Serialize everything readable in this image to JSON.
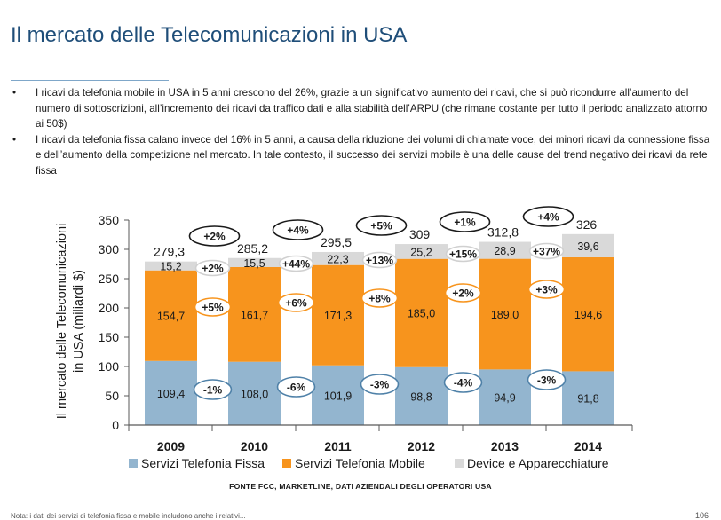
{
  "page": {
    "title": "Il mercato delle Telecomunicazioni in USA",
    "bullets": [
      "I ricavi da telefonia mobile in USA in 5 anni crescono del 26%, grazie a un significativo aumento dei ricavi, che si può ricondurre all’aumento del numero di sottoscrizioni, all’incremento dei ricavi da traffico dati e alla stabilità dell’ARPU (che rimane costante per tutto il periodo analizzato attorno ai 50$)",
      "I ricavi da telefonia fissa calano invece del 16% in 5 anni, a causa della riduzione dei volumi di chiamate voce, dei minori ricavi da connessione fissa e dell’aumento della competizione nel mercato. In tale contesto, il successo dei servizi mobile è una delle cause del trend negativo dei ricavi da rete fissa"
    ],
    "bullet_marker": "•",
    "source": "FONTE FCC, MARKETLINE, DATI AZIENDALI DEGLI OPERATORI USA",
    "footnote": "Nota: i dati dei servizi di telefonia fissa e mobile includono anche i relativi...",
    "page_number": "106"
  },
  "chart_data": {
    "type": "bar",
    "stacked": true,
    "categories": [
      "2009",
      "2010",
      "2011",
      "2012",
      "2013",
      "2014"
    ],
    "ylabel": "Il mercato delle Telecomunicazioni in USA (miliardi $)",
    "ylim": [
      0,
      350
    ],
    "yticks": [
      0,
      50,
      100,
      150,
      200,
      250,
      300,
      350
    ],
    "series": [
      {
        "name": "Servizi Telefonia Fissa",
        "color": "#93b5cf",
        "values": [
          109.4,
          108.0,
          101.9,
          98.8,
          94.9,
          91.8
        ],
        "labels": [
          "109,4",
          "108,0",
          "101,9",
          "98,8",
          "94,9",
          "91,8"
        ]
      },
      {
        "name": "Servizi Telefonia Mobile",
        "color": "#f7941d",
        "values": [
          154.7,
          161.7,
          171.3,
          185.0,
          189.0,
          194.6
        ],
        "labels": [
          "154,7",
          "161,7",
          "171,3",
          "185,0",
          "189,0",
          "194,6"
        ]
      },
      {
        "name": "Device e Apparecchiature",
        "color": "#d9d9d9",
        "values": [
          15.2,
          15.5,
          22.3,
          25.2,
          28.9,
          39.6
        ],
        "labels": [
          "15,2",
          "15,5",
          "22,3",
          "25,2",
          "28,9",
          "39,6"
        ]
      }
    ],
    "totals": [
      "279,3",
      "285,2",
      "295,5",
      "309",
      "312,8",
      "326"
    ],
    "growth_total": [
      "+2%",
      "+4%",
      "+5%",
      "+1%",
      "+4%"
    ],
    "growth_device": [
      "+2%",
      "+44%",
      "+13%",
      "+15%",
      "+37%"
    ],
    "growth_mobile": [
      "+5%",
      "+6%",
      "+8%",
      "+2%",
      "+3%"
    ],
    "growth_fissa": [
      "-1%",
      "-6%",
      "-3%",
      "-4%",
      "-3%"
    ],
    "legend_position": "bottom",
    "grid": false
  }
}
